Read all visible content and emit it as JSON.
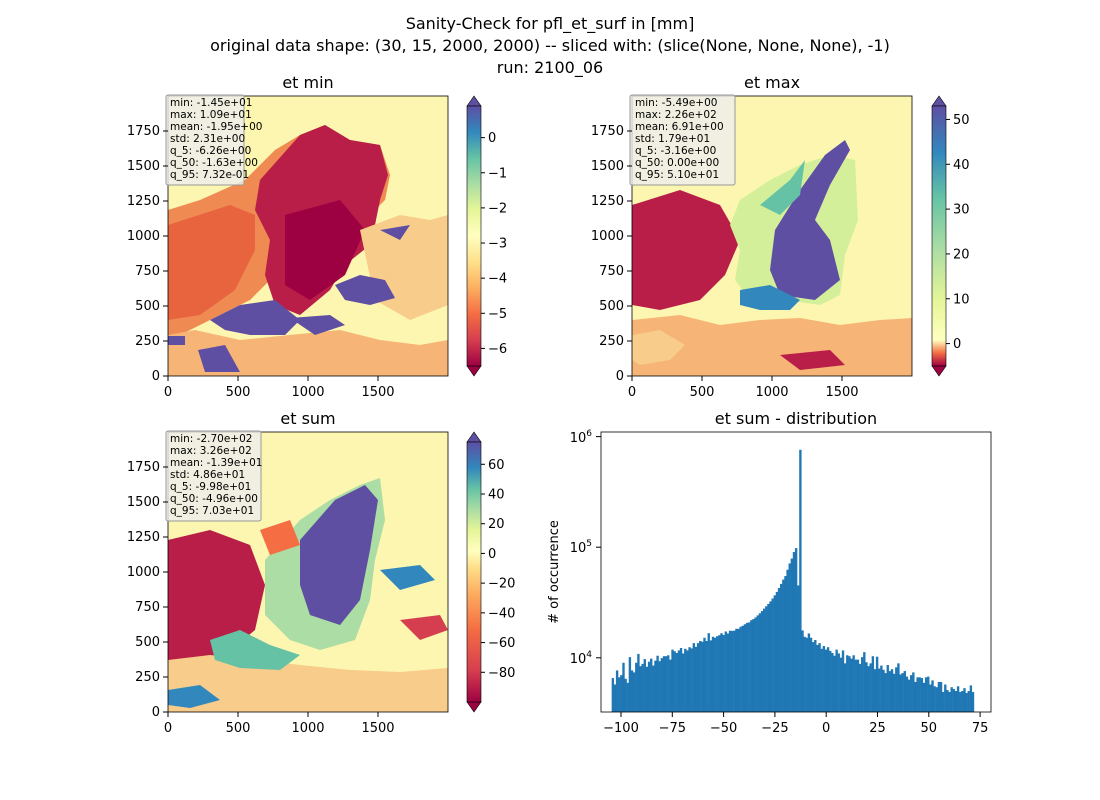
{
  "figure": {
    "title_lines": [
      "Sanity-Check for pfl_et_surf in [mm]",
      "original data shape: (30, 15, 2000, 2000) -- sliced with: (slice(None, None, None), -1)",
      "run: 2100_06"
    ]
  },
  "colors": {
    "histogram_bar": "#1f77b4",
    "colormap": "Spectral",
    "colormap_stops": [
      "#9e0142",
      "#d53e4f",
      "#f46d43",
      "#fdae61",
      "#fee08b",
      "#ffffbf",
      "#e6f598",
      "#abdda4",
      "#66c2a5",
      "#3288bd",
      "#5e4fa2"
    ],
    "stats_box_bg": "#eeeeee",
    "stats_box_border": "#999999"
  },
  "panels": [
    {
      "id": "et-min",
      "title": "et min",
      "x_ticks": [
        "0",
        "500",
        "1000",
        "1500"
      ],
      "y_ticks": [
        "0",
        "250",
        "500",
        "750",
        "1000",
        "1250",
        "1500",
        "1750"
      ],
      "stats": [
        "min: -1.45e+01",
        "max: 1.09e+01",
        "mean: -1.95e+00",
        "std: 2.31e+00",
        "q_5: -6.26e+00",
        "q_50: -1.63e+00",
        "q_95: 7.32e-01"
      ],
      "colorbar": {
        "vmin": -6.5,
        "vmax": 0.9,
        "ticks": [
          0,
          -1,
          -2,
          -3,
          -4,
          -5,
          -6
        ],
        "tick_labels": [
          "0",
          "−1",
          "−2",
          "−3",
          "−4",
          "−5",
          "−6"
        ]
      }
    },
    {
      "id": "et-max",
      "title": "et max",
      "x_ticks": [
        "0",
        "500",
        "1000",
        "1500"
      ],
      "y_ticks": [
        "0",
        "250",
        "500",
        "750",
        "1000",
        "1250",
        "1500",
        "1750"
      ],
      "stats": [
        "min: -5.49e+00",
        "max: 2.26e+02",
        "mean: 6.91e+00",
        "std: 1.79e+01",
        "q_5: -3.16e+00",
        "q_50: 0.00e+00",
        "q_95: 5.10e+01"
      ],
      "colorbar": {
        "vmin": -5,
        "vmax": 53,
        "ticks": [
          50,
          40,
          30,
          20,
          10,
          0
        ],
        "tick_labels": [
          "50",
          "40",
          "30",
          "20",
          "10",
          "0"
        ]
      }
    },
    {
      "id": "et-sum",
      "title": "et sum",
      "x_ticks": [
        "0",
        "500",
        "1000",
        "1500"
      ],
      "y_ticks": [
        "0",
        "250",
        "500",
        "750",
        "1000",
        "1250",
        "1500",
        "1750"
      ],
      "stats": [
        "min: -2.70e+02",
        "max: 3.26e+02",
        "mean: -1.39e+01",
        "std: 4.86e+01",
        "q_5: -9.98e+01",
        "q_50: -4.96e+00",
        "q_95: 7.03e+01"
      ],
      "colorbar": {
        "vmin": -100,
        "vmax": 75,
        "ticks": [
          60,
          40,
          20,
          0,
          -20,
          -40,
          -60,
          -80
        ],
        "tick_labels": [
          "60",
          "40",
          "20",
          "0",
          "−20",
          "−40",
          "−60",
          "−80"
        ]
      }
    }
  ],
  "chart_data": [
    {
      "type": "heatmap",
      "title": "et min",
      "xlim": [
        0,
        2000
      ],
      "ylim": [
        0,
        2000
      ],
      "colormap": "Spectral",
      "color_range": [
        -6.5,
        0.9
      ]
    },
    {
      "type": "heatmap",
      "title": "et max",
      "xlim": [
        0,
        2000
      ],
      "ylim": [
        0,
        2000
      ],
      "colormap": "Spectral",
      "color_range": [
        -5,
        53
      ]
    },
    {
      "type": "heatmap",
      "title": "et sum",
      "xlim": [
        0,
        2000
      ],
      "ylim": [
        0,
        2000
      ],
      "colormap": "Spectral",
      "color_range": [
        -100,
        75
      ]
    },
    {
      "type": "bar",
      "title": "et sum - distribution",
      "ylabel": "# of occurrence",
      "xlim": [
        -105,
        78
      ],
      "ylim": [
        3000,
        1200000
      ],
      "yscale": "log",
      "x_ticks": [
        -100,
        -75,
        -50,
        -25,
        0,
        25,
        50,
        75
      ],
      "x_tick_labels": [
        "−100",
        "−75",
        "−50",
        "−25",
        "0",
        "25",
        "50",
        "75"
      ],
      "y_ticks": [
        10000,
        100000,
        1000000
      ],
      "y_tick_labels": [
        "10⁴",
        "10⁵",
        "10⁶"
      ],
      "bin_edges_range": [
        -100,
        70
      ],
      "bin_width": 1,
      "values": [
        6200,
        5400,
        7300,
        6300,
        6600,
        8600,
        6100,
        5600,
        9700,
        7300,
        7000,
        8600,
        10400,
        8000,
        8400,
        9300,
        7900,
        8800,
        9400,
        8100,
        9000,
        10000,
        8900,
        9500,
        9900,
        9900,
        10100,
        9200,
        11400,
        11000,
        10600,
        11200,
        11800,
        10500,
        11600,
        11200,
        12000,
        11700,
        13100,
        12100,
        13100,
        13700,
        13500,
        14700,
        13700,
        16200,
        13900,
        15000,
        14700,
        15200,
        15500,
        16200,
        15600,
        16800,
        16100,
        17100,
        17000,
        17100,
        17800,
        17800,
        18600,
        19000,
        19600,
        20200,
        20400,
        21400,
        21900,
        22700,
        23700,
        24800,
        26000,
        27400,
        28800,
        30300,
        32000,
        34000,
        36400,
        39200,
        42600,
        46500,
        51000,
        55000,
        63000,
        72000,
        80000,
        92000,
        100000,
        45000,
        820000,
        17200,
        15000,
        14700,
        16100,
        14700,
        13400,
        14000,
        12600,
        13100,
        11600,
        12300,
        11400,
        12000,
        11100,
        10600,
        10000,
        11400,
        10500,
        9600,
        11200,
        8500,
        10100,
        9900,
        9400,
        10100,
        9200,
        9200,
        8400,
        9700,
        10800,
        8700,
        8000,
        8500,
        9900,
        7500,
        9800,
        7600,
        8100,
        7400,
        6900,
        8200,
        7200,
        7500,
        6800,
        7800,
        8500,
        6700,
        6900,
        7200,
        6400,
        6000,
        6600,
        7000,
        5700,
        6300,
        6300,
        6200,
        5600,
        6300,
        6400,
        5400,
        5900,
        5200,
        5100,
        5700,
        5700,
        4600,
        5400,
        4800,
        4600,
        5100,
        4900,
        4700,
        5200,
        4600,
        4700,
        5000,
        4500,
        4700,
        5300,
        4600
      ]
    }
  ],
  "histogram": {
    "title": "et sum - distribution",
    "ylabel": "# of occurrence",
    "x_tick_labels": [
      "−100",
      "−75",
      "−50",
      "−25",
      "0",
      "25",
      "50",
      "75"
    ],
    "y_tick_base": [
      "10",
      "10",
      "10"
    ],
    "y_tick_exp": [
      "4",
      "5",
      "6"
    ]
  }
}
